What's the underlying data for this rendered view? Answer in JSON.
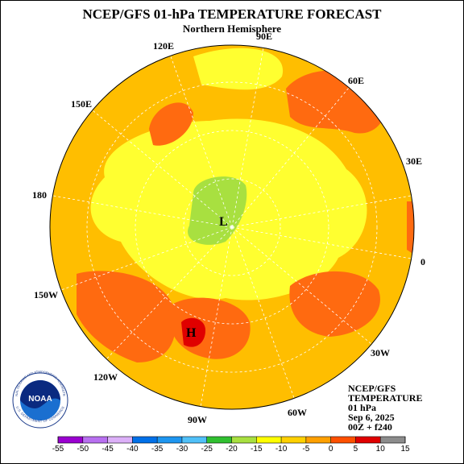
{
  "header": {
    "title": "NCEP/GFS 01-hPa TEMPERATURE FORECAST",
    "subtitle": "Northern Hemisphere"
  },
  "map": {
    "longitude_labels": [
      "90E",
      "120E",
      "60E",
      "150E",
      "30E",
      "180",
      "0",
      "150W",
      "30W",
      "120W",
      "90W",
      "60W"
    ],
    "low_label": "L",
    "high_label": "H"
  },
  "info": {
    "lines": [
      "NCEP/GFS",
      "TEMPERATURE",
      "01 hPa",
      "Sep 6, 2025",
      "00Z + f240"
    ]
  },
  "logo": {
    "text": "NOAA",
    "ring_top": "NATIONAL OCEANIC AND ATMOSPHERIC ADMINISTRATION",
    "ring_bottom": "U.S. DEPARTMENT OF COMMERCE"
  },
  "colorbar": {
    "ticks": [
      -55,
      -50,
      -45,
      -40,
      -35,
      -30,
      -25,
      -20,
      -15,
      -10,
      -5,
      0,
      5,
      10,
      15
    ],
    "colors": [
      "#9a00d0",
      "#b870f0",
      "#dcb0f8",
      "#0070e8",
      "#1e96f0",
      "#50c0f8",
      "#30c030",
      "#a8e040",
      "#ffff00",
      "#ffd000",
      "#ffa000",
      "#ff5000",
      "#e00000",
      "#8c8c8c"
    ]
  }
}
